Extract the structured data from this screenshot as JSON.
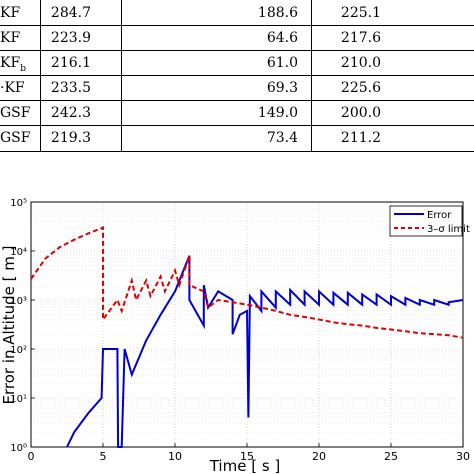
{
  "table": {
    "rows": [
      {
        "label": "KF",
        "c1": "284.7",
        "c2": "188.6",
        "c3": "225.1"
      },
      {
        "label": "KF",
        "c1": "223.9",
        "c2": "64.6",
        "c3": "217.6"
      },
      {
        "label": "KF",
        "label_sub": "b",
        "c1": "216.1",
        "c2": "61.0",
        "c3": "210.0"
      },
      {
        "label": "·KF",
        "c1": "233.5",
        "c2": "69.3",
        "c3": "225.6"
      },
      {
        "label": "GSF",
        "c1": "242.3",
        "c2": "149.0",
        "c3": "200.0"
      },
      {
        "label": "GSF",
        "c1": "219.3",
        "c2": "73.4",
        "c3": "211.2"
      }
    ]
  },
  "chart_data": {
    "type": "line",
    "xlabel": "Time [ s ]",
    "ylabel": "Error in Altitude [ m ]",
    "xlim": [
      0,
      30
    ],
    "ylim": [
      1,
      100000
    ],
    "yscale": "log",
    "grid": true,
    "legend_position": "top-right",
    "xticks": [
      "0",
      "5",
      "10",
      "15",
      "20",
      "25",
      "30"
    ],
    "yticks": [
      "10⁰",
      "10¹",
      "10²",
      "10³",
      "10⁴",
      "10⁵"
    ],
    "colors": {
      "error": "#0000cc",
      "limit": "#dd0000"
    },
    "series": [
      {
        "name": "Error",
        "style": "solid",
        "points": [
          [
            2.5,
            1
          ],
          [
            3,
            2
          ],
          [
            4,
            5
          ],
          [
            4.9,
            10
          ],
          [
            5,
            100
          ],
          [
            6,
            100
          ],
          [
            6.05,
            1
          ],
          [
            6.3,
            1
          ],
          [
            6.5,
            100
          ],
          [
            7,
            30
          ],
          [
            8,
            150
          ],
          [
            9,
            500
          ],
          [
            10,
            1500
          ],
          [
            11,
            8000
          ],
          [
            11,
            1000
          ],
          [
            12,
            300
          ],
          [
            12,
            2000
          ],
          [
            12.3,
            700
          ],
          [
            13,
            1500
          ],
          [
            14,
            1000
          ],
          [
            14,
            200
          ],
          [
            14.5,
            500
          ],
          [
            15,
            600
          ],
          [
            15.1,
            4
          ],
          [
            15.2,
            1200
          ],
          [
            16,
            600
          ],
          [
            16,
            1500
          ],
          [
            17,
            700
          ],
          [
            17,
            1500
          ],
          [
            18,
            800
          ],
          [
            18,
            1600
          ],
          [
            19,
            800
          ],
          [
            19,
            1500
          ],
          [
            20,
            800
          ],
          [
            20,
            1500
          ],
          [
            21,
            800
          ],
          [
            21,
            1400
          ],
          [
            22,
            800
          ],
          [
            22,
            1400
          ],
          [
            23,
            800
          ],
          [
            23,
            1300
          ],
          [
            24,
            800
          ],
          [
            24,
            1300
          ],
          [
            25,
            800
          ],
          [
            25,
            1200
          ],
          [
            26,
            800
          ],
          [
            26,
            1100
          ],
          [
            27,
            800
          ],
          [
            27,
            1000
          ],
          [
            28,
            800
          ],
          [
            28,
            1000
          ],
          [
            29,
            800
          ],
          [
            29,
            900
          ],
          [
            30,
            1000
          ]
        ]
      },
      {
        "name": "3–σ limit",
        "style": "dashed",
        "points": [
          [
            0,
            2700
          ],
          [
            1,
            7000
          ],
          [
            2,
            12000
          ],
          [
            3,
            17000
          ],
          [
            4,
            23000
          ],
          [
            5,
            30000
          ],
          [
            5,
            400
          ],
          [
            6,
            1000
          ],
          [
            6.3,
            600
          ],
          [
            7,
            2500
          ],
          [
            7.3,
            1000
          ],
          [
            8,
            2500
          ],
          [
            8.3,
            1200
          ],
          [
            9,
            3000
          ],
          [
            9.3,
            1500
          ],
          [
            10,
            4000
          ],
          [
            10.3,
            2000
          ],
          [
            11,
            8000
          ],
          [
            11,
            2000
          ],
          [
            12,
            1500
          ],
          [
            12.3,
            700
          ],
          [
            13,
            1000
          ],
          [
            14,
            900
          ],
          [
            15,
            800
          ],
          [
            16,
            700
          ],
          [
            17,
            600
          ],
          [
            18,
            500
          ],
          [
            19,
            450
          ],
          [
            20,
            400
          ],
          [
            21,
            350
          ],
          [
            22,
            320
          ],
          [
            23,
            300
          ],
          [
            24,
            270
          ],
          [
            25,
            250
          ],
          [
            26,
            230
          ],
          [
            27,
            210
          ],
          [
            28,
            200
          ],
          [
            29,
            190
          ],
          [
            30,
            170
          ]
        ]
      }
    ]
  }
}
